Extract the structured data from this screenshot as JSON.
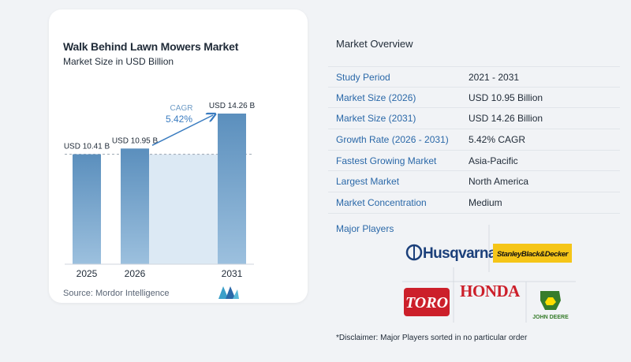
{
  "chart": {
    "title": "Walk Behind Lawn Mowers Market",
    "subtitle": "Market Size in USD Billion",
    "source": "Source:  Mordor Intelligence",
    "cagr_label": "CAGR",
    "cagr_value": "5.42%"
  },
  "chart_data": {
    "type": "bar",
    "title": "Walk Behind Lawn Mowers Market",
    "subtitle": "Market Size in USD Billion",
    "categories": [
      "2025",
      "2026",
      "2031"
    ],
    "values": [
      10.41,
      10.95,
      14.26
    ],
    "data_labels": [
      "USD 10.41 B",
      "USD 10.95 B",
      "USD 14.26 B"
    ],
    "unit": "USD Billion",
    "grid": false,
    "annotation": "CAGR 5.42%"
  },
  "overview": {
    "title": "Market Overview",
    "rows": [
      {
        "label": "Study Period",
        "value": "2021 - 2031"
      },
      {
        "label": "Market Size (2026)",
        "value": "USD 10.95 Billion"
      },
      {
        "label": "Market Size (2031)",
        "value": "USD 14.26 Billion"
      },
      {
        "label": "Growth Rate (2026 - 2031)",
        "value": "5.42% CAGR"
      },
      {
        "label": "Fastest Growing Market",
        "value": "Asia-Pacific"
      },
      {
        "label": "Largest Market",
        "value": "North America"
      },
      {
        "label": "Market Concentration",
        "value": "Medium"
      }
    ],
    "players_title": "Major Players",
    "players": [
      "Husqvarna",
      "StanleyBlack&Decker",
      "TORO",
      "HONDA",
      "JOHN DEERE"
    ],
    "disclaimer": "*Disclaimer: Major Players sorted in no particular order"
  },
  "colors": {
    "bar": "#5b8fbd",
    "bar_light": "#9cc0de",
    "shade": "#dce9f4",
    "accent": "#3a7cc0",
    "label_blue": "#2a68a8"
  }
}
